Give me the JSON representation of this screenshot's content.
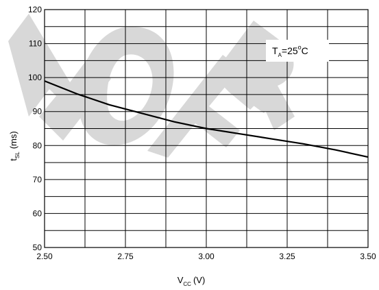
{
  "chart_data": {
    "type": "line",
    "title": "",
    "xlabel": {
      "main": "V",
      "sub": "CC",
      "unit": "(V)"
    },
    "ylabel": {
      "main": "t",
      "sub": "SL",
      "unit": "(ms)"
    },
    "xlim": [
      2.5,
      3.5
    ],
    "ylim": [
      50,
      120
    ],
    "x_ticks": [
      2.5,
      2.75,
      3.0,
      3.25,
      3.5
    ],
    "x_tick_labels": [
      "2.50",
      "2.75",
      "3.00",
      "3.25",
      "3.50"
    ],
    "y_ticks": [
      50,
      60,
      70,
      80,
      90,
      100,
      110,
      120
    ],
    "y_tick_labels": [
      "50",
      "60",
      "70",
      "80",
      "90",
      "100",
      "110",
      "120"
    ],
    "x_grid_step": 0.125,
    "y_grid_step": 5,
    "grid": true,
    "series": [
      {
        "x": [
          2.5,
          2.6,
          2.7,
          2.8,
          2.9,
          3.0,
          3.1,
          3.2,
          3.3,
          3.4,
          3.5
        ],
        "y": [
          99,
          95.2,
          92,
          89.5,
          87,
          85,
          83.5,
          82,
          80.5,
          78.7,
          76.6
        ]
      }
    ],
    "annotation": {
      "main": "T",
      "sub": "A",
      "value": "=25",
      "sup": "o",
      "unit": "C"
    },
    "watermark": "NOT FOR"
  },
  "colors": {
    "line": "#000000",
    "grid": "#000000",
    "watermark": "#d8d8d8"
  }
}
